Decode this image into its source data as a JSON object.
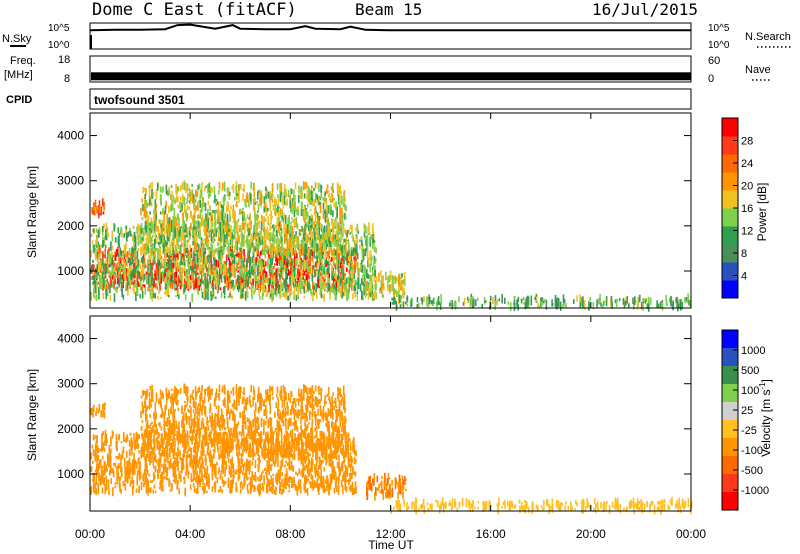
{
  "header": {
    "station": "Dome C East (fitACF)",
    "beam": "Beam 15",
    "date": "16/Jul/2015"
  },
  "colors": {
    "frame": "#000000",
    "background": "#ffffff",
    "power_scale": [
      "#0000ff",
      "#2a52be",
      "#4a8f5a",
      "#2e9e4f",
      "#7fd04a",
      "#f2c020",
      "#ff9500",
      "#ff6a00",
      "#ff3a1a",
      "#ff0000"
    ],
    "velocity_scale": [
      "#ff0000",
      "#ff3a1a",
      "#ff6a00",
      "#ff9500",
      "#ffc020",
      "#d0d0d0",
      "#7fd04a",
      "#3a8f4a",
      "#2a52be",
      "#0000ff"
    ]
  },
  "chart_data": [
    {
      "type": "line",
      "panel": "nsky",
      "ylabel": "N.Sky",
      "ylabel_right": "N.Search",
      "yticks_left": [
        "10^5",
        "10^0"
      ],
      "yticks_right": [
        "10^5",
        "10^0"
      ],
      "x": [
        0,
        1,
        2,
        3,
        3.5,
        4,
        5,
        5.7,
        6,
        7,
        8,
        8.6,
        9,
        10,
        10.4,
        11,
        12,
        13,
        14,
        16,
        18,
        20,
        22,
        24
      ],
      "values": [
        3.6,
        3.7,
        3.7,
        3.8,
        4.6,
        4.7,
        3.9,
        4.6,
        3.9,
        3.8,
        3.8,
        4.4,
        3.9,
        3.8,
        4.3,
        3.7,
        3.6,
        3.6,
        3.6,
        3.6,
        3.6,
        3.6,
        3.6,
        3.6
      ],
      "ylim": [
        0,
        5
      ],
      "xlim": [
        0,
        24
      ]
    },
    {
      "type": "line",
      "panel": "freq",
      "ylabel": "Freq.",
      "yunit": "[MHz]",
      "ylabel_right": "Nave",
      "yticks_left": [
        "18",
        "8"
      ],
      "yticks_right": [
        "60",
        "0"
      ],
      "x": [
        0,
        4,
        8,
        12,
        16,
        20,
        24
      ],
      "values": [
        10.2,
        10.2,
        10.2,
        10.2,
        10.2,
        10.2,
        10.2
      ],
      "ylim": [
        8,
        18
      ],
      "xlim": [
        0,
        24
      ]
    },
    {
      "type": "heatmap",
      "panel": "cpid",
      "ylabel": "CPID",
      "label": "twofsound 3501"
    },
    {
      "type": "heatmap",
      "panel": "power",
      "ylabel": "Slant Range [km]",
      "colorbar_label": "Power [dB]",
      "colorbar_ticks": [
        "4",
        "8",
        "12",
        "16",
        "20",
        "24",
        "28"
      ],
      "colorbar_range": [
        0,
        32
      ],
      "xlim": [
        0,
        24
      ],
      "ylim": [
        180,
        4500
      ],
      "yticks": [
        "1000",
        "2000",
        "3000",
        "4000"
      ],
      "regions": [
        {
          "t0": 0.0,
          "t1": 10.6,
          "r0": 600,
          "r1": 1450,
          "level": 27
        },
        {
          "t0": 0.0,
          "t1": 11.4,
          "r0": 400,
          "r1": 2000,
          "level": 14
        },
        {
          "t0": 0.0,
          "t1": 0.6,
          "r0": 2250,
          "r1": 2550,
          "level": 25
        },
        {
          "t0": 2.0,
          "t1": 10.2,
          "r0": 1400,
          "r1": 2900,
          "level": 16
        },
        {
          "t0": 11.0,
          "t1": 12.6,
          "r0": 400,
          "r1": 950,
          "level": 17
        },
        {
          "t0": 12.0,
          "t1": 24.0,
          "r0": 200,
          "r1": 400,
          "level": 12
        }
      ]
    },
    {
      "type": "heatmap",
      "panel": "velocity",
      "ylabel": "Slant Range [km]",
      "colorbar_label": "Velocity [m s",
      "colorbar_label_sup": "-1",
      "colorbar_label_end": "]",
      "colorbar_ticks": [
        "1000",
        "500",
        "100",
        "25",
        "-25",
        "-100",
        "-500",
        "-1000"
      ],
      "xlim": [
        0,
        24
      ],
      "ylim": [
        180,
        4500
      ],
      "yticks": [
        "1000",
        "2000",
        "3000",
        "4000"
      ],
      "regions": [
        {
          "t0": 0.0,
          "t1": 10.6,
          "r0": 600,
          "r1": 1900,
          "level": -200
        },
        {
          "t0": 0.0,
          "t1": 0.6,
          "r0": 2250,
          "r1": 2550,
          "level": -150
        },
        {
          "t0": 2.0,
          "t1": 10.2,
          "r0": 1400,
          "r1": 2900,
          "level": -120
        },
        {
          "t0": 11.0,
          "t1": 12.6,
          "r0": 500,
          "r1": 950,
          "level": -250
        },
        {
          "t0": 12.0,
          "t1": 24.0,
          "r0": 200,
          "r1": 400,
          "level": -60
        }
      ]
    }
  ],
  "xaxis": {
    "ticks": [
      "00:00",
      "04:00",
      "08:00",
      "12:00",
      "16:00",
      "20:00",
      "00:00"
    ],
    "label": "Time UT"
  }
}
